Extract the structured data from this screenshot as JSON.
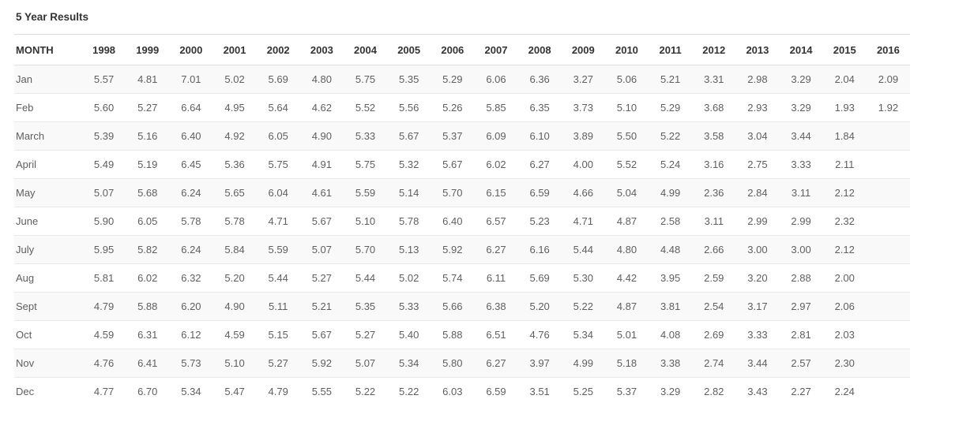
{
  "title": "5 Year Results",
  "table": {
    "month_header": "MONTH",
    "year_headers": [
      "1998",
      "1999",
      "2000",
      "2001",
      "2002",
      "2003",
      "2004",
      "2005",
      "2006",
      "2007",
      "2008",
      "2009",
      "2010",
      "2011",
      "2012",
      "2013",
      "2014",
      "2015",
      "2016"
    ],
    "rows": [
      {
        "month": "Jan",
        "values": [
          "5.57",
          "4.81",
          "7.01",
          "5.02",
          "5.69",
          "4.80",
          "5.75",
          "5.35",
          "5.29",
          "6.06",
          "6.36",
          "3.27",
          "5.06",
          "5.21",
          "3.31",
          "2.98",
          "3.29",
          "2.04",
          "2.09"
        ]
      },
      {
        "month": "Feb",
        "values": [
          "5.60",
          "5.27",
          "6.64",
          "4.95",
          "5.64",
          "4.62",
          "5.52",
          "5.56",
          "5.26",
          "5.85",
          "6.35",
          "3.73",
          "5.10",
          "5.29",
          "3.68",
          "2.93",
          "3.29",
          "1.93",
          "1.92"
        ]
      },
      {
        "month": "March",
        "values": [
          "5.39",
          "5.16",
          "6.40",
          "4.92",
          "6.05",
          "4.90",
          "5.33",
          "5.67",
          "5.37",
          "6.09",
          "6.10",
          "3.89",
          "5.50",
          "5.22",
          "3.58",
          "3.04",
          "3.44",
          "1.84"
        ]
      },
      {
        "month": "April",
        "values": [
          "5.49",
          "5.19",
          "6.45",
          "5.36",
          "5.75",
          "4.91",
          "5.75",
          "5.32",
          "5.67",
          "6.02",
          "6.27",
          "4.00",
          "5.52",
          "5.24",
          "3.16",
          "2.75",
          "3.33",
          "2.11"
        ]
      },
      {
        "month": "May",
        "values": [
          "5.07",
          "5.68",
          "6.24",
          "5.65",
          "6.04",
          "4.61",
          "5.59",
          "5.14",
          "5.70",
          "6.15",
          "6.59",
          "4.66",
          "5.04",
          "4.99",
          "2.36",
          "2.84",
          "3.11",
          "2.12"
        ]
      },
      {
        "month": "June",
        "values": [
          "5.90",
          "6.05",
          "5.78",
          "5.78",
          "4.71",
          "5.67",
          "5.10",
          "5.78",
          "6.40",
          "6.57",
          "5.23",
          "4.71",
          "4.87",
          "2.58",
          "3.11",
          "2.99",
          "2.99",
          "2.32"
        ]
      },
      {
        "month": "July",
        "values": [
          "5.95",
          "5.82",
          "6.24",
          "5.84",
          "5.59",
          "5.07",
          "5.70",
          "5.13",
          "5.92",
          "6.27",
          "6.16",
          "5.44",
          "4.80",
          "4.48",
          "2.66",
          "3.00",
          "3.00",
          "2.12"
        ]
      },
      {
        "month": "Aug",
        "values": [
          "5.81",
          "6.02",
          "6.32",
          "5.20",
          "5.44",
          "5.27",
          "5.44",
          "5.02",
          "5.74",
          "6.11",
          "5.69",
          "5.30",
          "4.42",
          "3.95",
          "2.59",
          "3.20",
          "2.88",
          "2.00"
        ]
      },
      {
        "month": "Sept",
        "values": [
          "4.79",
          "5.88",
          "6.20",
          "4.90",
          "5.11",
          "5.21",
          "5.35",
          "5.33",
          "5.66",
          "6.38",
          "5.20",
          "5.22",
          "4.87",
          "3.81",
          "2.54",
          "3.17",
          "2.97",
          "2.06"
        ]
      },
      {
        "month": "Oct",
        "values": [
          "4.59",
          "6.31",
          "6.12",
          "4.59",
          "5.15",
          "5.67",
          "5.27",
          "5.40",
          "5.88",
          "6.51",
          "4.76",
          "5.34",
          "5.01",
          "4.08",
          "2.69",
          "3.33",
          "2.81",
          "2.03"
        ]
      },
      {
        "month": "Nov",
        "values": [
          "4.76",
          "6.41",
          "5.73",
          "5.10",
          "5.27",
          "5.92",
          "5.07",
          "5.34",
          "5.80",
          "6.27",
          "3.97",
          "4.99",
          "5.18",
          "3.38",
          "2.74",
          "3.44",
          "2.57",
          "2.30"
        ]
      },
      {
        "month": "Dec",
        "values": [
          "4.77",
          "6.70",
          "5.34",
          "5.47",
          "4.79",
          "5.55",
          "5.22",
          "5.22",
          "6.03",
          "6.59",
          "3.51",
          "5.25",
          "5.37",
          "3.29",
          "2.82",
          "3.43",
          "2.27",
          "2.24"
        ]
      }
    ]
  },
  "chart_data": {
    "type": "table",
    "title": "5 Year Results",
    "columns": [
      "MONTH",
      "1998",
      "1999",
      "2000",
      "2001",
      "2002",
      "2003",
      "2004",
      "2005",
      "2006",
      "2007",
      "2008",
      "2009",
      "2010",
      "2011",
      "2012",
      "2013",
      "2014",
      "2015",
      "2016"
    ],
    "rows": [
      [
        "Jan",
        5.57,
        4.81,
        7.01,
        5.02,
        5.69,
        4.8,
        5.75,
        5.35,
        5.29,
        6.06,
        6.36,
        3.27,
        5.06,
        5.21,
        3.31,
        2.98,
        3.29,
        2.04,
        2.09
      ],
      [
        "Feb",
        5.6,
        5.27,
        6.64,
        4.95,
        5.64,
        4.62,
        5.52,
        5.56,
        5.26,
        5.85,
        6.35,
        3.73,
        5.1,
        5.29,
        3.68,
        2.93,
        3.29,
        1.93,
        1.92
      ],
      [
        "March",
        5.39,
        5.16,
        6.4,
        4.92,
        6.05,
        4.9,
        5.33,
        5.67,
        5.37,
        6.09,
        6.1,
        3.89,
        5.5,
        5.22,
        3.58,
        3.04,
        3.44,
        1.84,
        null
      ],
      [
        "April",
        5.49,
        5.19,
        6.45,
        5.36,
        5.75,
        4.91,
        5.75,
        5.32,
        5.67,
        6.02,
        6.27,
        4.0,
        5.52,
        5.24,
        3.16,
        2.75,
        3.33,
        2.11,
        null
      ],
      [
        "May",
        5.07,
        5.68,
        6.24,
        5.65,
        6.04,
        4.61,
        5.59,
        5.14,
        5.7,
        6.15,
        6.59,
        4.66,
        5.04,
        4.99,
        2.36,
        2.84,
        3.11,
        2.12,
        null
      ],
      [
        "June",
        5.9,
        6.05,
        5.78,
        5.78,
        4.71,
        5.67,
        5.1,
        5.78,
        6.4,
        6.57,
        5.23,
        4.71,
        4.87,
        2.58,
        3.11,
        2.99,
        2.99,
        2.32,
        null
      ],
      [
        "July",
        5.95,
        5.82,
        6.24,
        5.84,
        5.59,
        5.07,
        5.7,
        5.13,
        5.92,
        6.27,
        6.16,
        5.44,
        4.8,
        4.48,
        2.66,
        3.0,
        3.0,
        2.12,
        null
      ],
      [
        "Aug",
        5.81,
        6.02,
        6.32,
        5.2,
        5.44,
        5.27,
        5.44,
        5.02,
        5.74,
        6.11,
        5.69,
        5.3,
        4.42,
        3.95,
        2.59,
        3.2,
        2.88,
        2.0,
        null
      ],
      [
        "Sept",
        4.79,
        5.88,
        6.2,
        4.9,
        5.11,
        5.21,
        5.35,
        5.33,
        5.66,
        6.38,
        5.2,
        5.22,
        4.87,
        3.81,
        2.54,
        3.17,
        2.97,
        2.06,
        null
      ],
      [
        "Oct",
        4.59,
        6.31,
        6.12,
        4.59,
        5.15,
        5.67,
        5.27,
        5.4,
        5.88,
        6.51,
        4.76,
        5.34,
        5.01,
        4.08,
        2.69,
        3.33,
        2.81,
        2.03,
        null
      ],
      [
        "Nov",
        4.76,
        6.41,
        5.73,
        5.1,
        5.27,
        5.92,
        5.07,
        5.34,
        5.8,
        6.27,
        3.97,
        4.99,
        5.18,
        3.38,
        2.74,
        3.44,
        2.57,
        2.3,
        null
      ],
      [
        "Dec",
        4.77,
        6.7,
        5.34,
        5.47,
        4.79,
        5.55,
        5.22,
        5.22,
        6.03,
        6.59,
        3.51,
        5.25,
        5.37,
        3.29,
        2.82,
        3.43,
        2.27,
        2.24,
        null
      ]
    ],
    "colors": {
      "stripe": "#f9f9f9",
      "border": "#e0e0e0",
      "header_text": "#333333",
      "body_text": "#5f5f5f"
    }
  }
}
